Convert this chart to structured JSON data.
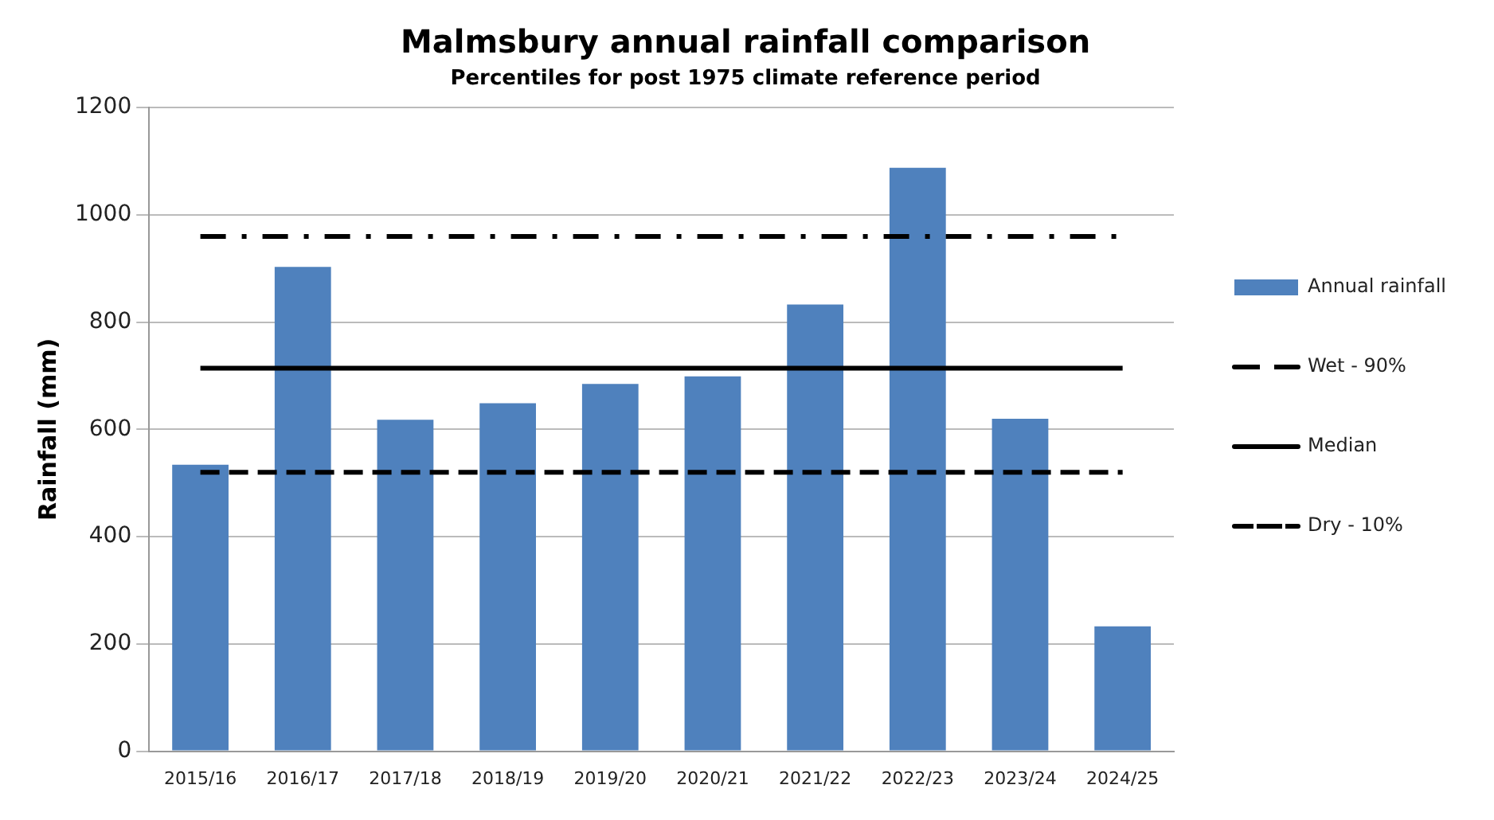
{
  "chart_data": {
    "type": "bar",
    "title": "Malmsbury annual rainfall comparison",
    "subtitle": "Percentiles for post 1975 climate reference period",
    "ylabel": "Rainfall (mm)",
    "categories": [
      "2015/16",
      "2016/17",
      "2017/18",
      "2018/19",
      "2019/20",
      "2020/21",
      "2021/22",
      "2022/23",
      "2023/24",
      "2024/25"
    ],
    "series": [
      {
        "name": "Annual rainfall",
        "color": "#4f81bd",
        "values": [
          534,
          903,
          618,
          649,
          685,
          699,
          833,
          1088,
          620,
          233
        ]
      },
      {
        "name": "Wet - 90%",
        "type": "line",
        "color": "#000000",
        "line_style": "dashdot",
        "values": [
          960,
          960,
          960,
          960,
          960,
          960,
          960,
          960,
          960,
          960
        ]
      },
      {
        "name": "Median",
        "type": "line",
        "color": "#000000",
        "line_style": "solid",
        "values": [
          714,
          714,
          714,
          714,
          714,
          714,
          714,
          714,
          714,
          714
        ]
      },
      {
        "name": "Dry - 10%",
        "type": "line",
        "color": "#000000",
        "line_style": "dashed",
        "values": [
          520,
          520,
          520,
          520,
          520,
          520,
          520,
          520,
          520,
          520
        ]
      }
    ],
    "ylim": [
      0,
      1200
    ],
    "yticks": [
      0,
      200,
      400,
      600,
      800,
      1000,
      1200
    ],
    "grid": "y",
    "legend": "right",
    "marker": "none"
  }
}
